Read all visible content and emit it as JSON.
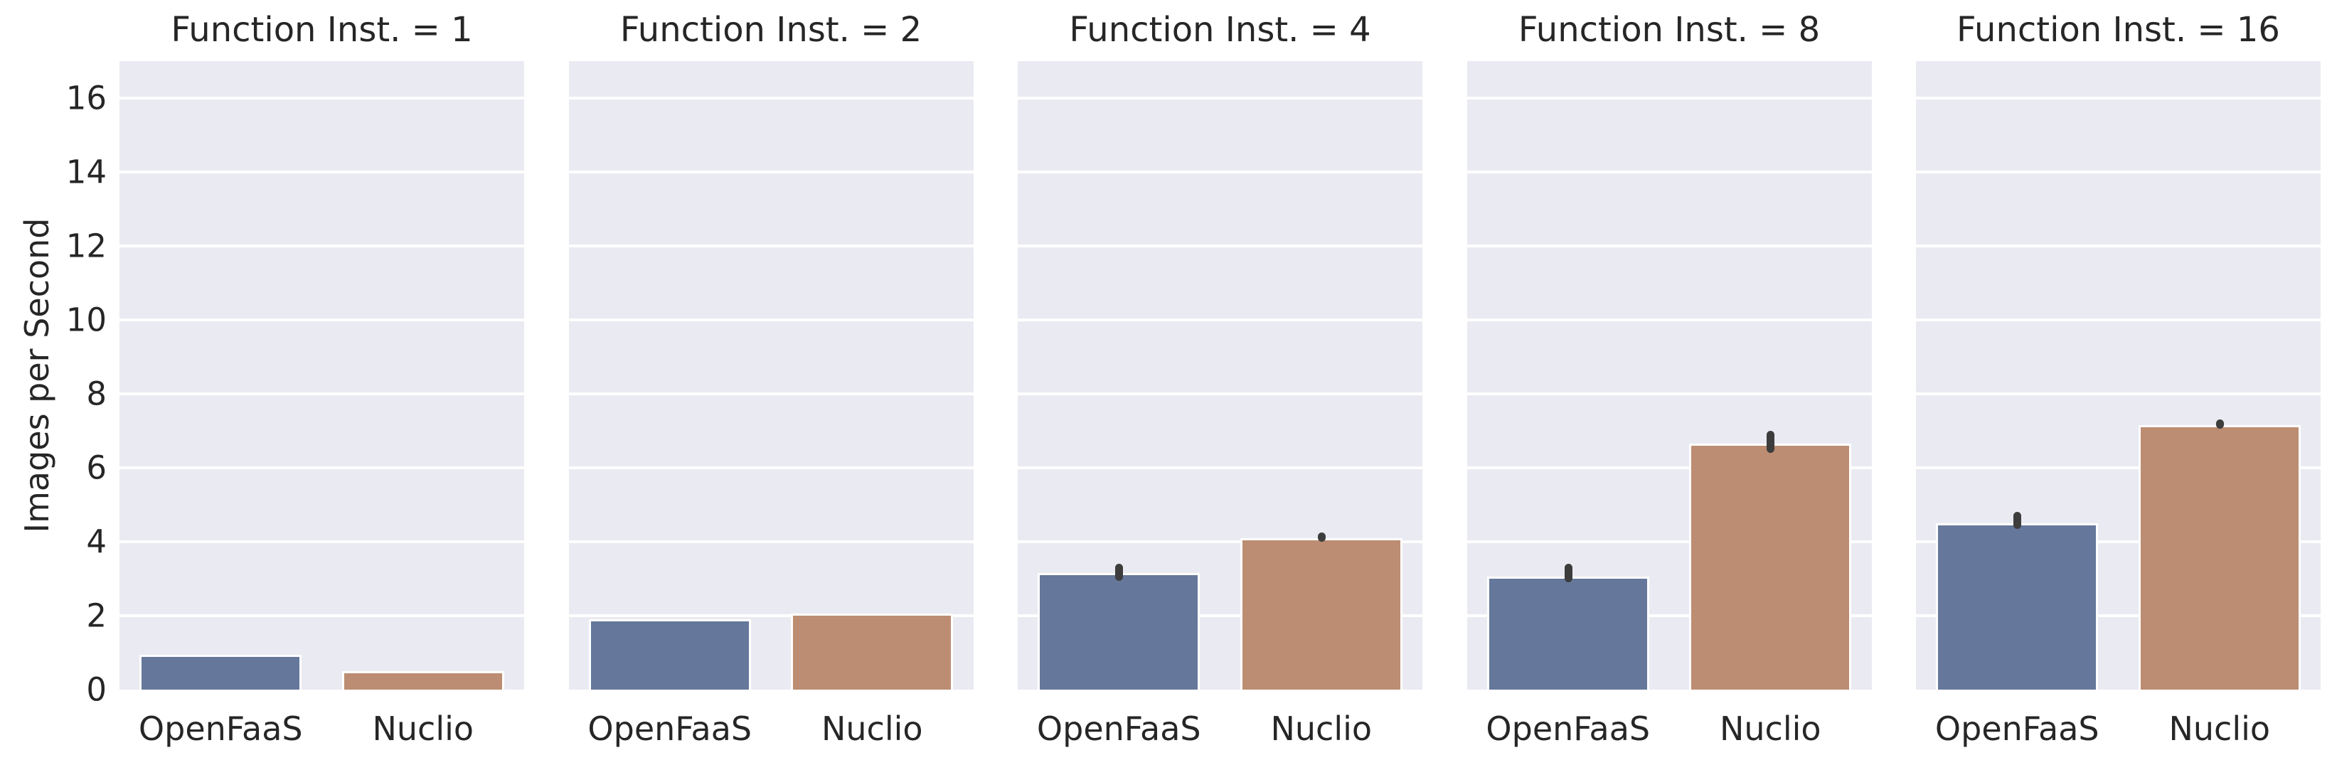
{
  "figure": {
    "ylabel": "Images per Second",
    "categories": [
      "OpenFaaS",
      "Nuclio"
    ]
  },
  "colors": {
    "openfaas_bar": "#65789b",
    "nuclio_bar": "#bc8d72",
    "panel_background": "#eaeaf2",
    "gridline": "#ffffff",
    "error_bar": "#3d3d3d",
    "text": "#262626"
  },
  "chart_data": {
    "type": "bar",
    "title": "",
    "ylabel": "Images per Second",
    "xlabel": "",
    "ylim": [
      0,
      17
    ],
    "yticks": [
      0,
      2,
      4,
      6,
      8,
      10,
      12,
      14,
      16
    ],
    "grid": true,
    "legend": false,
    "facet_variable": "Function Inst.",
    "categories": [
      "OpenFaaS",
      "Nuclio"
    ],
    "facets": [
      {
        "title": "Function Inst. = 1",
        "function_instances": 1,
        "bars": [
          {
            "label": "OpenFaaS",
            "value": 0.95,
            "ci": null
          },
          {
            "label": "Nuclio",
            "value": 0.5,
            "ci": null
          }
        ]
      },
      {
        "title": "Function Inst. = 2",
        "function_instances": 2,
        "bars": [
          {
            "label": "OpenFaaS",
            "value": 1.9,
            "ci": null
          },
          {
            "label": "Nuclio",
            "value": 2.05,
            "ci": null
          }
        ]
      },
      {
        "title": "Function Inst. = 4",
        "function_instances": 4,
        "bars": [
          {
            "label": "OpenFaaS",
            "value": 3.15,
            "ci": [
              2.95,
              3.4
            ]
          },
          {
            "label": "Nuclio",
            "value": 4.1,
            "ci": [
              4.0,
              4.25
            ]
          }
        ]
      },
      {
        "title": "Function Inst. = 8",
        "function_instances": 8,
        "bars": [
          {
            "label": "OpenFaaS",
            "value": 3.05,
            "ci": [
              2.9,
              3.4
            ]
          },
          {
            "label": "Nuclio",
            "value": 6.65,
            "ci": [
              6.4,
              7.0
            ]
          }
        ]
      },
      {
        "title": "Function Inst. = 16",
        "function_instances": 16,
        "bars": [
          {
            "label": "OpenFaaS",
            "value": 4.5,
            "ci": [
              4.35,
              4.8
            ]
          },
          {
            "label": "Nuclio",
            "value": 7.15,
            "ci": [
              7.05,
              7.3
            ]
          }
        ]
      }
    ]
  }
}
